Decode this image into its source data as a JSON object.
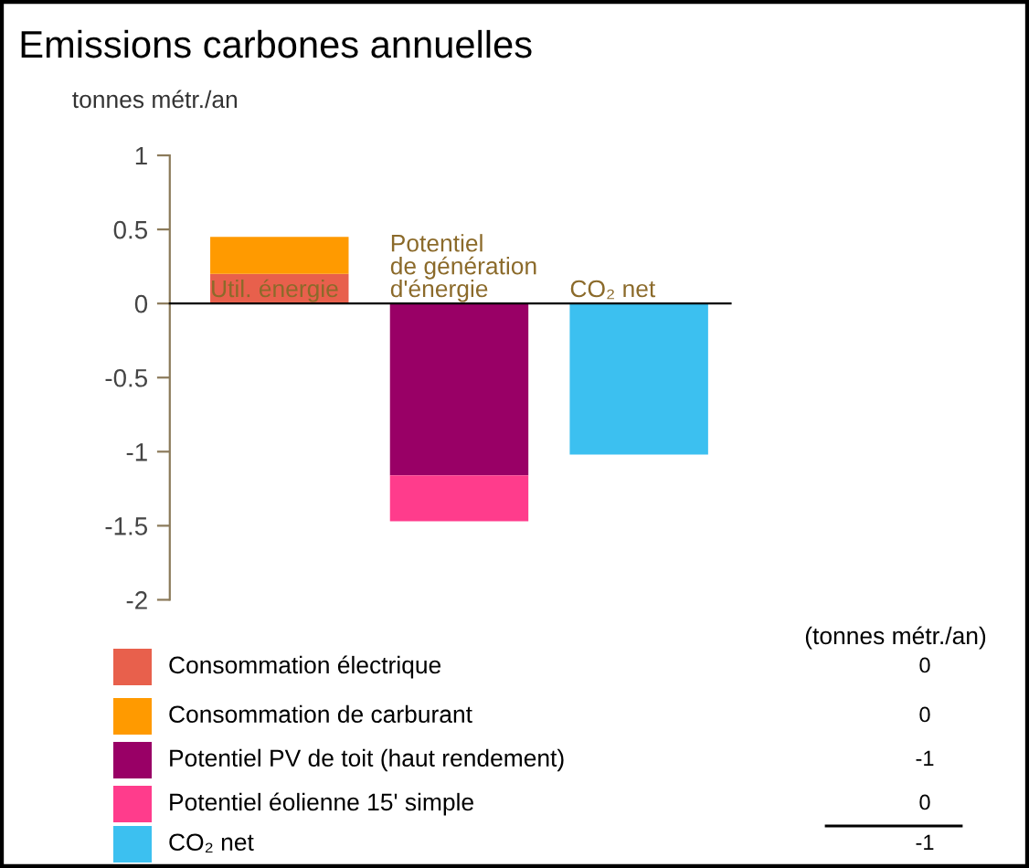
{
  "chart_data": {
    "type": "bar",
    "stacked": true,
    "title": "Emissions carbones annuelles",
    "ylabel": "tonnes métr./an",
    "categories": [
      "Util. énergie",
      "Potentiel\nde génération\nd'énergie",
      "CO₂ net"
    ],
    "series": [
      {
        "name": "Consommation électrique",
        "color": "#e8604c",
        "values": [
          0.2,
          null,
          null
        ]
      },
      {
        "name": "Consommation de carburant",
        "color": "#ff9a00",
        "values": [
          0.25,
          null,
          null
        ]
      },
      {
        "name": "Potentiel PV de toit (haut rendement)",
        "color": "#990066",
        "values": [
          null,
          -1.16,
          null
        ]
      },
      {
        "name": "Potentiel éolienne 15' simple",
        "color": "#ff3c8c",
        "values": [
          null,
          -0.31,
          null
        ]
      },
      {
        "name": "CO₂ net",
        "color": "#3cc0f0",
        "values": [
          null,
          null,
          -1.02
        ]
      }
    ],
    "ylim": [
      -2,
      1
    ],
    "yticks": [
      -2,
      -1.5,
      -1,
      -0.5,
      0,
      0.5,
      1
    ],
    "legend": "bottom",
    "annotations": [
      "(tonnes métr./an)",
      "0",
      "0",
      "-1",
      "0",
      "-1"
    ]
  }
}
